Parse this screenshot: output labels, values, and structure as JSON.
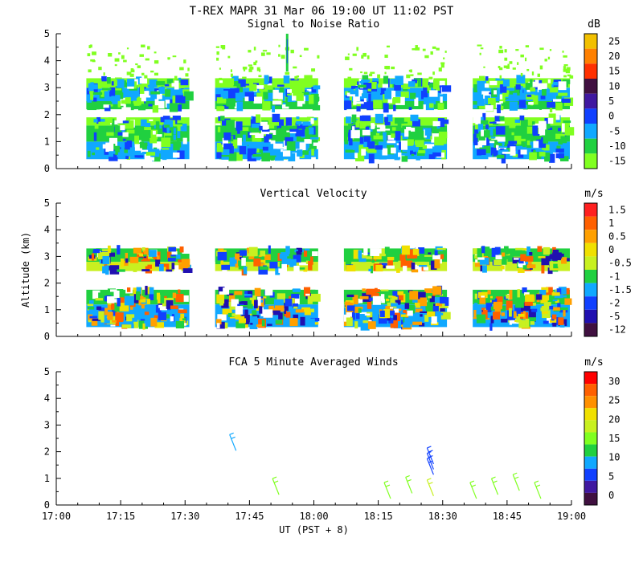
{
  "header": {
    "title": "T-REX   MAPR 31 Mar 06   19:00 UT   11:02  PST"
  },
  "axes": {
    "x_ticks": [
      "17:00",
      "17:15",
      "17:30",
      "17:45",
      "18:00",
      "18:15",
      "18:30",
      "18:45",
      "19:00"
    ],
    "x_label": "UT  (PST + 8)",
    "y_ticks": [
      "0",
      "1",
      "2",
      "3",
      "4",
      "5"
    ],
    "y_label": "Altitude (km)",
    "y_range": [
      0,
      5.0
    ],
    "x_range_minutes": [
      0,
      120
    ]
  },
  "chart_data": [
    {
      "type": "heatmap",
      "title": "Signal to Noise Ratio",
      "unit": "dB",
      "colorbar": {
        "labels": [
          "25",
          "20",
          "15",
          "10",
          "5",
          "0",
          "-5",
          "-10",
          "-15"
        ],
        "colors": [
          "#f2c000",
          "#ff8000",
          "#ff3000",
          "#401040",
          "#4018a0",
          "#1040ff",
          "#10a8ff",
          "#20d040",
          "#80ff20"
        ]
      },
      "coverage_x_minutes": [
        [
          7,
          31
        ],
        [
          37,
          61
        ],
        [
          67,
          91
        ],
        [
          97,
          121
        ]
      ],
      "coverage_altitude_km": [
        0.35,
        3.35
      ],
      "data_gap_altitude_km": [
        [
          1.9,
          2.2
        ]
      ],
      "bands": [
        {
          "alt_range": [
            0.35,
            1.0
          ],
          "color": "#10a8ff"
        },
        {
          "alt_range": [
            1.0,
            1.6
          ],
          "color": "#20d040"
        },
        {
          "alt_range": [
            1.6,
            1.9
          ],
          "color": "#80ff20"
        },
        {
          "alt_range": [
            2.2,
            2.5
          ],
          "color": "#20d040"
        },
        {
          "alt_range": [
            2.5,
            3.0
          ],
          "color": "#10a8ff"
        },
        {
          "alt_range": [
            3.0,
            3.35
          ],
          "color": "#80ff20"
        }
      ]
    },
    {
      "type": "heatmap",
      "title": "Vertical Velocity",
      "unit": "m/s",
      "colorbar": {
        "labels": [
          "1.5",
          "1",
          "0.5",
          "0",
          "-0.5",
          "-1",
          "-1.5",
          "-2",
          "-5",
          "-12"
        ],
        "colors": [
          "#ff2020",
          "#ff6000",
          "#ffa000",
          "#f0e000",
          "#c8f020",
          "#20d040",
          "#10a8ff",
          "#1040ff",
          "#2010b0",
          "#401040"
        ]
      },
      "coverage_x_minutes": [
        [
          7,
          31
        ],
        [
          37,
          61
        ],
        [
          67,
          91
        ],
        [
          97,
          121
        ]
      ],
      "coverage_altitude_km": [
        0.35,
        3.3
      ],
      "data_gap_altitude_km": [
        [
          1.75,
          2.45
        ]
      ],
      "bands": [
        {
          "alt_range": [
            0.35,
            1.2
          ],
          "color": "#10a8ff"
        },
        {
          "alt_range": [
            1.2,
            1.75
          ],
          "color": "#20d040"
        },
        {
          "alt_range": [
            2.45,
            2.8
          ],
          "color": "#c8f020"
        },
        {
          "alt_range": [
            2.8,
            3.3
          ],
          "color": "#20d040"
        }
      ]
    },
    {
      "type": "scatter",
      "title": "FCA 5 Minute Averaged Winds",
      "unit": "m/s",
      "colorbar": {
        "labels": [
          "30",
          "25",
          "20",
          "15",
          "10",
          "5",
          "0"
        ],
        "colors": [
          "#ff0000",
          "#ff6000",
          "#ff9000",
          "#f0e000",
          "#c8f020",
          "#80ff20",
          "#20d040",
          "#10a8ff",
          "#1040ff",
          "#4018a0",
          "#401040"
        ]
      },
      "barbs": [
        {
          "t_min": 41.5,
          "alt_km": 2.4,
          "speed": 10
        },
        {
          "t_min": 51.5,
          "alt_km": 0.75,
          "speed": 14
        },
        {
          "t_min": 77.5,
          "alt_km": 0.6,
          "speed": 15
        },
        {
          "t_min": 82.5,
          "alt_km": 0.8,
          "speed": 13
        },
        {
          "t_min": 87.5,
          "alt_km": 1.5,
          "speed": 5
        },
        {
          "t_min": 87.5,
          "alt_km": 1.7,
          "speed": 5
        },
        {
          "t_min": 87.5,
          "alt_km": 1.9,
          "speed": 5
        },
        {
          "t_min": 87.5,
          "alt_km": 0.7,
          "speed": 18
        },
        {
          "t_min": 97.5,
          "alt_km": 0.6,
          "speed": 13
        },
        {
          "t_min": 102.5,
          "alt_km": 0.75,
          "speed": 13
        },
        {
          "t_min": 107.5,
          "alt_km": 0.9,
          "speed": 15
        },
        {
          "t_min": 112.5,
          "alt_km": 0.6,
          "speed": 14
        }
      ]
    }
  ]
}
